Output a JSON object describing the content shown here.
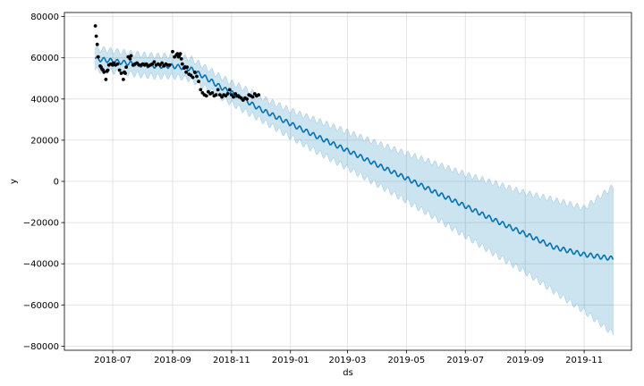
{
  "chart_data": {
    "type": "line",
    "title": "",
    "xlabel": "ds",
    "ylabel": "y",
    "x_range": [
      "2018-05-12",
      "2019-12-20"
    ],
    "ylim": [
      -82000,
      82000
    ],
    "grid": true,
    "x_ticks": [
      "2018-07",
      "2018-09",
      "2018-11",
      "2019-01",
      "2019-03",
      "2019-05",
      "2019-07",
      "2019-09",
      "2019-11"
    ],
    "y_ticks": [
      80000,
      60000,
      40000,
      20000,
      0,
      -20000,
      -40000,
      -60000,
      -80000
    ],
    "colors": {
      "forecast_line": "#0072b2",
      "uncertainty_band": "#0072b2",
      "observed_points": "#000000",
      "grid": "#dddddd",
      "axes": "#000000"
    },
    "series": [
      {
        "type": "scatter",
        "x": [
          "2018-06-13",
          "2018-06-14",
          "2018-06-15",
          "2018-06-16",
          "2018-06-18",
          "2018-06-19",
          "2018-06-20",
          "2018-06-21",
          "2018-06-22",
          "2018-06-24",
          "2018-06-25",
          "2018-06-26",
          "2018-06-27",
          "2018-06-29",
          "2018-07-01",
          "2018-07-02",
          "2018-07-04",
          "2018-07-06",
          "2018-07-08",
          "2018-07-10",
          "2018-07-12",
          "2018-07-13",
          "2018-07-14",
          "2018-07-15",
          "2018-07-17",
          "2018-07-19",
          "2018-07-20",
          "2018-07-22",
          "2018-07-24",
          "2018-07-26",
          "2018-07-28",
          "2018-07-30",
          "2018-08-01",
          "2018-08-03",
          "2018-08-05",
          "2018-08-07",
          "2018-08-09",
          "2018-08-11",
          "2018-08-13",
          "2018-08-15",
          "2018-08-17",
          "2018-08-19",
          "2018-08-21",
          "2018-08-23",
          "2018-08-25",
          "2018-08-27",
          "2018-08-29",
          "2018-09-01",
          "2018-09-03",
          "2018-09-05",
          "2018-09-06",
          "2018-09-07",
          "2018-09-08",
          "2018-09-09",
          "2018-09-10",
          "2018-09-11",
          "2018-09-13",
          "2018-09-14",
          "2018-09-15",
          "2018-09-16",
          "2018-09-18",
          "2018-09-20",
          "2018-09-22",
          "2018-09-24",
          "2018-09-26",
          "2018-09-28",
          "2018-09-30",
          "2018-10-02",
          "2018-10-04",
          "2018-10-06",
          "2018-10-08",
          "2018-10-10",
          "2018-10-12",
          "2018-10-14",
          "2018-10-16",
          "2018-10-18",
          "2018-10-20",
          "2018-10-22",
          "2018-10-24",
          "2018-10-26",
          "2018-10-28",
          "2018-10-30",
          "2018-11-01",
          "2018-11-03",
          "2018-11-05",
          "2018-11-07",
          "2018-11-09",
          "2018-11-11",
          "2018-11-13",
          "2018-11-15",
          "2018-11-17",
          "2018-11-19",
          "2018-11-21",
          "2018-11-23",
          "2018-11-25",
          "2018-11-27",
          "2018-11-29"
        ],
        "y": [
          75500,
          70500,
          66500,
          60500,
          56000,
          55500,
          54500,
          54000,
          53000,
          49500,
          53500,
          54000,
          56500,
          57000,
          56500,
          57500,
          56500,
          57000,
          54000,
          52500,
          49500,
          53000,
          52500,
          55500,
          60500,
          59500,
          61000,
          56500,
          57000,
          57500,
          56500,
          56500,
          57000,
          56500,
          57000,
          56000,
          56500,
          57000,
          58000,
          56500,
          57000,
          56500,
          57500,
          56000,
          57000,
          56500,
          56500,
          63000,
          60500,
          61500,
          62000,
          60500,
          61000,
          62000,
          59500,
          57000,
          55000,
          55500,
          53000,
          55500,
          52000,
          51500,
          50500,
          53000,
          51000,
          48500,
          44500,
          43000,
          42000,
          41500,
          43500,
          42500,
          43000,
          41500,
          42000,
          44500,
          42000,
          41000,
          42000,
          41500,
          42500,
          44500,
          42000,
          41000,
          42500,
          41500,
          41000,
          40500,
          39500,
          40500,
          40000,
          42000,
          41500,
          41000,
          42500,
          41500,
          42000
        ]
      },
      {
        "type": "line",
        "name": "",
        "x": [
          "2018-06-13",
          "2018-07-01",
          "2018-07-15",
          "2018-08-01",
          "2018-08-15",
          "2018-09-01",
          "2018-09-10",
          "2018-09-20",
          "2018-10-01",
          "2018-10-10",
          "2018-10-20",
          "2018-11-01",
          "2018-11-15",
          "2018-12-01",
          "2019-01-01",
          "2019-02-01",
          "2019-03-01",
          "2019-04-01",
          "2019-05-01",
          "2019-06-01",
          "2019-07-01",
          "2019-08-01",
          "2019-09-01",
          "2019-10-01",
          "2019-11-01",
          "2019-12-01"
        ],
        "y": [
          59500,
          58500,
          57500,
          56500,
          56000,
          56000,
          55500,
          54500,
          51500,
          49000,
          46000,
          43000,
          39500,
          35000,
          28000,
          21000,
          15000,
          8000,
          1500,
          -5500,
          -12000,
          -19000,
          -25500,
          -32000,
          -35500,
          -37500
        ],
        "y_lower": [
          54000,
          53500,
          52500,
          51500,
          51000,
          51000,
          50500,
          49500,
          46500,
          44000,
          41000,
          38000,
          34000,
          30000,
          21500,
          13500,
          6500,
          -1500,
          -9500,
          -18000,
          -26500,
          -35500,
          -44000,
          -53500,
          -63000,
          -74000
        ],
        "y_upper": [
          64500,
          63500,
          62500,
          61500,
          61000,
          61000,
          60500,
          59500,
          56500,
          54000,
          51000,
          48000,
          45000,
          41000,
          34500,
          29000,
          24000,
          18500,
          13500,
          8500,
          3500,
          -1000,
          -5500,
          -9000,
          -13000,
          -2500
        ]
      }
    ]
  }
}
